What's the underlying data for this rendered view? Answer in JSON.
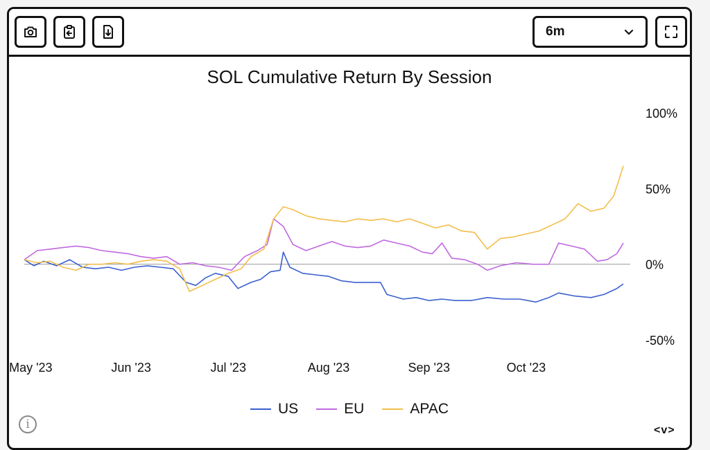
{
  "toolbar": {
    "icons": [
      "camera-icon",
      "clipboard-icon",
      "download-icon",
      "fullscreen-icon"
    ],
    "range_selected": "6m"
  },
  "chart_data": {
    "type": "line",
    "title": "SOL Cumulative Return By Session",
    "x_ticks": [
      "May '23",
      "Jun '23",
      "Jul '23",
      "Aug '23",
      "Sep '23",
      "Oct '23"
    ],
    "y_ticks": [
      "100%",
      "50%",
      "0%",
      "-50%"
    ],
    "ylim": [
      -50,
      100
    ],
    "xlim": [
      "2023-04-29",
      "2023-10-31"
    ],
    "y_axis_position": "right",
    "zero_line": true,
    "legend_position": "bottom",
    "series": [
      {
        "name": "US",
        "color": "#3a5fcf",
        "points": [
          [
            "2023-04-29",
            3
          ],
          [
            "2023-05-02",
            -1
          ],
          [
            "2023-05-05",
            2
          ],
          [
            "2023-05-09",
            -1
          ],
          [
            "2023-05-13",
            3
          ],
          [
            "2023-05-17",
            -2
          ],
          [
            "2023-05-21",
            -3
          ],
          [
            "2023-05-25",
            -2
          ],
          [
            "2023-05-29",
            -4
          ],
          [
            "2023-06-02",
            -2
          ],
          [
            "2023-06-06",
            -1
          ],
          [
            "2023-06-10",
            -2
          ],
          [
            "2023-06-14",
            -3
          ],
          [
            "2023-06-18",
            -12
          ],
          [
            "2023-06-21",
            -14
          ],
          [
            "2023-06-24",
            -9
          ],
          [
            "2023-06-27",
            -6
          ],
          [
            "2023-07-01",
            -8
          ],
          [
            "2023-07-04",
            -16
          ],
          [
            "2023-07-08",
            -12
          ],
          [
            "2023-07-11",
            -10
          ],
          [
            "2023-07-14",
            -5
          ],
          [
            "2023-07-17",
            -4
          ],
          [
            "2023-07-18",
            8
          ],
          [
            "2023-07-20",
            -2
          ],
          [
            "2023-07-24",
            -6
          ],
          [
            "2023-07-28",
            -7
          ],
          [
            "2023-08-01",
            -8
          ],
          [
            "2023-08-05",
            -11
          ],
          [
            "2023-08-09",
            -12
          ],
          [
            "2023-08-13",
            -12
          ],
          [
            "2023-08-17",
            -12
          ],
          [
            "2023-08-19",
            -20
          ],
          [
            "2023-08-24",
            -23
          ],
          [
            "2023-08-28",
            -22
          ],
          [
            "2023-09-01",
            -24
          ],
          [
            "2023-09-05",
            -23
          ],
          [
            "2023-09-09",
            -24
          ],
          [
            "2023-09-14",
            -24
          ],
          [
            "2023-09-19",
            -22
          ],
          [
            "2023-09-24",
            -23
          ],
          [
            "2023-09-29",
            -23
          ],
          [
            "2023-10-04",
            -25
          ],
          [
            "2023-10-08",
            -22
          ],
          [
            "2023-10-11",
            -19
          ],
          [
            "2023-10-16",
            -21
          ],
          [
            "2023-10-21",
            -22
          ],
          [
            "2023-10-25",
            -20
          ],
          [
            "2023-10-29",
            -16
          ],
          [
            "2023-10-31",
            -13
          ]
        ]
      },
      {
        "name": "EU",
        "color": "#c068e0",
        "points": [
          [
            "2023-04-29",
            3
          ],
          [
            "2023-05-03",
            9
          ],
          [
            "2023-05-07",
            10
          ],
          [
            "2023-05-11",
            11
          ],
          [
            "2023-05-15",
            12
          ],
          [
            "2023-05-19",
            11
          ],
          [
            "2023-05-23",
            9
          ],
          [
            "2023-05-27",
            8
          ],
          [
            "2023-05-31",
            7
          ],
          [
            "2023-06-04",
            5
          ],
          [
            "2023-06-08",
            4
          ],
          [
            "2023-06-12",
            5
          ],
          [
            "2023-06-16",
            0
          ],
          [
            "2023-06-20",
            1
          ],
          [
            "2023-06-24",
            -1
          ],
          [
            "2023-06-28",
            -2
          ],
          [
            "2023-07-02",
            -4
          ],
          [
            "2023-07-06",
            5
          ],
          [
            "2023-07-10",
            9
          ],
          [
            "2023-07-13",
            13
          ],
          [
            "2023-07-15",
            30
          ],
          [
            "2023-07-18",
            25
          ],
          [
            "2023-07-21",
            13
          ],
          [
            "2023-07-25",
            9
          ],
          [
            "2023-07-29",
            12
          ],
          [
            "2023-08-02",
            15
          ],
          [
            "2023-08-06",
            12
          ],
          [
            "2023-08-10",
            11
          ],
          [
            "2023-08-14",
            12
          ],
          [
            "2023-08-18",
            16
          ],
          [
            "2023-08-22",
            14
          ],
          [
            "2023-08-26",
            12
          ],
          [
            "2023-08-30",
            8
          ],
          [
            "2023-09-02",
            7
          ],
          [
            "2023-09-05",
            14
          ],
          [
            "2023-09-08",
            4
          ],
          [
            "2023-09-12",
            3
          ],
          [
            "2023-09-16",
            0
          ],
          [
            "2023-09-19",
            -4
          ],
          [
            "2023-09-23",
            -1
          ],
          [
            "2023-09-28",
            1
          ],
          [
            "2023-10-03",
            0
          ],
          [
            "2023-10-08",
            0
          ],
          [
            "2023-10-11",
            14
          ],
          [
            "2023-10-15",
            12
          ],
          [
            "2023-10-19",
            10
          ],
          [
            "2023-10-23",
            2
          ],
          [
            "2023-10-26",
            3
          ],
          [
            "2023-10-29",
            7
          ],
          [
            "2023-10-31",
            14
          ]
        ]
      },
      {
        "name": "APAC",
        "color": "#f2be4a",
        "points": [
          [
            "2023-04-29",
            3
          ],
          [
            "2023-05-03",
            1
          ],
          [
            "2023-05-07",
            2
          ],
          [
            "2023-05-11",
            -2
          ],
          [
            "2023-05-15",
            -4
          ],
          [
            "2023-05-19",
            0
          ],
          [
            "2023-05-23",
            0
          ],
          [
            "2023-05-27",
            1
          ],
          [
            "2023-05-31",
            0
          ],
          [
            "2023-06-04",
            2
          ],
          [
            "2023-06-08",
            3
          ],
          [
            "2023-06-12",
            2
          ],
          [
            "2023-06-16",
            -3
          ],
          [
            "2023-06-19",
            -18
          ],
          [
            "2023-06-23",
            -14
          ],
          [
            "2023-06-27",
            -10
          ],
          [
            "2023-07-01",
            -6
          ],
          [
            "2023-07-05",
            -3
          ],
          [
            "2023-07-08",
            5
          ],
          [
            "2023-07-12",
            10
          ],
          [
            "2023-07-15",
            30
          ],
          [
            "2023-07-18",
            38
          ],
          [
            "2023-07-21",
            36
          ],
          [
            "2023-07-25",
            32
          ],
          [
            "2023-07-29",
            30
          ],
          [
            "2023-08-02",
            29
          ],
          [
            "2023-08-06",
            28
          ],
          [
            "2023-08-10",
            30
          ],
          [
            "2023-08-14",
            29
          ],
          [
            "2023-08-18",
            30
          ],
          [
            "2023-08-22",
            28
          ],
          [
            "2023-08-26",
            30
          ],
          [
            "2023-08-30",
            27
          ],
          [
            "2023-09-03",
            24
          ],
          [
            "2023-09-07",
            26
          ],
          [
            "2023-09-11",
            22
          ],
          [
            "2023-09-15",
            21
          ],
          [
            "2023-09-19",
            10
          ],
          [
            "2023-09-23",
            17
          ],
          [
            "2023-09-27",
            18
          ],
          [
            "2023-10-01",
            20
          ],
          [
            "2023-10-05",
            22
          ],
          [
            "2023-10-09",
            26
          ],
          [
            "2023-10-13",
            30
          ],
          [
            "2023-10-17",
            40
          ],
          [
            "2023-10-21",
            35
          ],
          [
            "2023-10-25",
            37
          ],
          [
            "2023-10-28",
            45
          ],
          [
            "2023-10-30",
            58
          ],
          [
            "2023-10-31",
            65
          ]
        ]
      }
    ]
  },
  "footer": {
    "info_label": "i",
    "nav_label": "<v>"
  }
}
